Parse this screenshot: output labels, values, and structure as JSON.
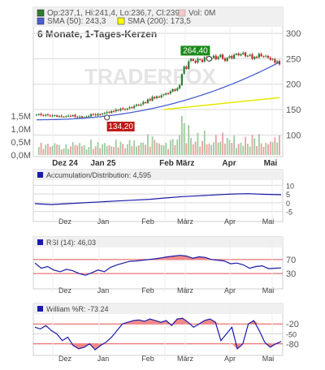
{
  "main": {
    "legend": {
      "ohlc": "Op:237,1, Hi:241,4, Lo:236,7, Cl:239",
      "vol": "Vol: 0M",
      "sma50": "SMA (50): 243,3",
      "sma200": "SMA (200): 173,5"
    },
    "period": "6 Monate, 1-Tages-Kerzen",
    "watermark": "TRADERFOX",
    "high_label": "264,40",
    "low_label": "134,20",
    "y_ticks": [
      "300",
      "250",
      "200",
      "150",
      "100"
    ],
    "vol_ticks": [
      "1,5M",
      "1,0M",
      "0,5M",
      "0,0M"
    ],
    "x_ticks": [
      "Dez 24",
      "Jan 25",
      "Feb",
      "März",
      "Apr",
      "Mai"
    ]
  },
  "ad": {
    "label": "Accumulation/Distribution: 4,595",
    "y_ticks": [
      "10",
      "5",
      "0",
      "-5"
    ]
  },
  "rsi": {
    "label": "RSI (14): 46,03",
    "y_ticks": [
      "70",
      "30"
    ]
  },
  "will": {
    "label": "William %R: -73,24",
    "y_ticks": [
      "-20",
      "-50",
      "-80"
    ]
  },
  "small_x_ticks": [
    "Dez",
    "Jan",
    "Feb",
    "März",
    "Apr",
    "Mai"
  ],
  "colors": {
    "up": "#2e7d32",
    "down": "#c62828",
    "sma50": "#4a5fd0",
    "sma200": "#e8e800",
    "indicator": "#1a1aa8",
    "band": "#e05050",
    "fill": "#f28a8a",
    "grid": "#d8d8d8"
  },
  "chart_data": [
    {
      "type": "candlestick",
      "title": "6 Monate, 1-Tages-Kerzen",
      "ylim": [
        75,
        305
      ],
      "close": [
        140,
        141,
        139,
        138,
        140,
        139,
        137,
        138,
        139,
        136,
        137,
        136,
        136,
        137,
        138,
        137,
        139,
        136,
        135,
        136,
        134,
        135,
        136,
        137,
        141,
        140,
        139,
        141,
        140,
        142,
        143,
        145,
        144,
        147,
        146,
        150,
        148,
        152,
        151,
        150,
        152,
        155,
        153,
        157,
        160,
        158,
        160,
        165,
        163,
        170,
        168,
        175,
        172,
        176,
        174,
        178,
        180,
        182,
        181,
        186,
        190,
        187,
        192,
        198,
        220,
        235,
        230,
        245,
        250,
        246,
        242,
        250,
        248,
        244,
        253,
        250,
        248,
        252,
        256,
        249,
        254,
        258,
        250,
        246,
        252,
        255,
        251,
        258,
        260,
        257,
        259,
        262,
        255,
        256,
        258,
        250,
        254,
        252,
        260,
        255,
        254,
        256,
        252,
        248,
        250,
        242,
        245,
        239
      ],
      "sma50_ends": [
        130,
        243.3
      ],
      "sma200_ends": [
        150,
        173.5
      ],
      "high": 264.4,
      "low": 134.2,
      "volume_ylim": [
        0,
        2000000
      ]
    },
    {
      "type": "line",
      "title": "Accumulation/Distribution",
      "ylim": [
        -7,
        12
      ],
      "values": [
        -0.5,
        -1,
        -0.5,
        0,
        0.5,
        1,
        1.5,
        2,
        2.8,
        3.5,
        4,
        4.5,
        5,
        5.2,
        4.8,
        4.6
      ]
    },
    {
      "type": "line",
      "title": "RSI (14)",
      "ylim": [
        0,
        100
      ],
      "values": [
        60,
        45,
        50,
        40,
        35,
        42,
        38,
        30,
        25,
        32,
        40,
        35,
        48,
        55,
        60,
        65,
        66,
        68,
        70,
        72,
        75,
        78,
        80,
        82,
        80,
        74,
        78,
        76,
        70,
        68,
        66,
        58,
        60,
        55,
        45,
        50,
        52,
        44,
        45,
        46
      ]
    },
    {
      "type": "line",
      "title": "William %R",
      "ylim": [
        -105,
        5
      ],
      "values": [
        -30,
        -35,
        -25,
        -40,
        -50,
        -70,
        -60,
        -85,
        -95,
        -90,
        -80,
        -98,
        -85,
        -75,
        -60,
        -40,
        -20,
        -15,
        -10,
        -8,
        -12,
        -5,
        -10,
        -15,
        -10,
        -25,
        -5,
        -3,
        -15,
        -30,
        -20,
        -10,
        -5,
        -15,
        -70,
        -50,
        -30,
        -95,
        -80,
        -20,
        -10,
        -40,
        -75,
        -90,
        -80,
        -73
      ]
    }
  ]
}
